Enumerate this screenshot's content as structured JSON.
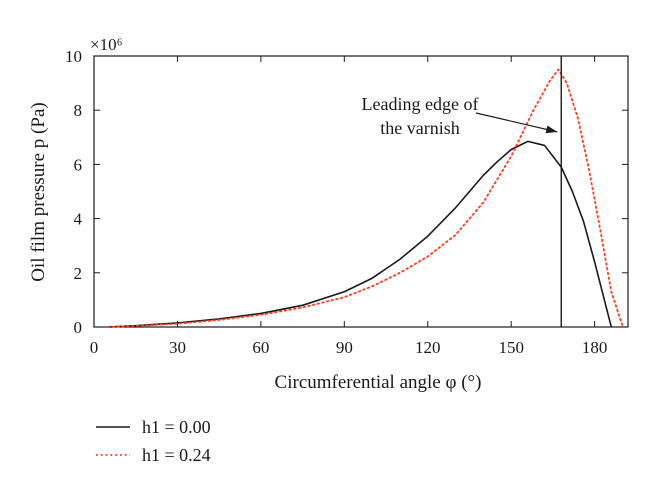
{
  "chart_data": {
    "type": "line",
    "xlabel": "Circumferential angle φ (°)",
    "ylabel": "Oil film pressure p (Pa)",
    "y_multiplier_label": "×10⁶",
    "xlim": [
      0,
      192
    ],
    "ylim": [
      0,
      10
    ],
    "x_ticks": [
      0,
      30,
      60,
      90,
      120,
      150,
      180
    ],
    "y_ticks": [
      0,
      2,
      4,
      6,
      8,
      10
    ],
    "grid": false,
    "legend_position": "bottom-left-outside",
    "series": [
      {
        "name": "h1 = 0.00",
        "color": "#1a1a1a",
        "style": "solid",
        "x": [
          5,
          15,
          30,
          45,
          60,
          75,
          90,
          100,
          110,
          120,
          130,
          140,
          145,
          150,
          156,
          162,
          168,
          172,
          176,
          180,
          183,
          186
        ],
        "y": [
          0.0,
          0.05,
          0.15,
          0.3,
          0.5,
          0.8,
          1.3,
          1.8,
          2.5,
          3.35,
          4.4,
          5.6,
          6.1,
          6.55,
          6.85,
          6.7,
          5.9,
          5.0,
          3.9,
          2.4,
          1.2,
          0.0
        ]
      },
      {
        "name": "h1 = 0.24",
        "color": "#ff3b1f",
        "style": "dotted",
        "x": [
          5,
          15,
          30,
          45,
          60,
          75,
          90,
          100,
          110,
          120,
          130,
          140,
          150,
          158,
          164,
          167,
          170,
          174,
          178,
          182,
          186,
          190
        ],
        "y": [
          0.0,
          0.04,
          0.12,
          0.26,
          0.45,
          0.72,
          1.1,
          1.5,
          2.0,
          2.6,
          3.4,
          4.6,
          6.3,
          8.0,
          9.1,
          9.5,
          9.0,
          7.7,
          5.8,
          3.6,
          1.3,
          0.05
        ]
      }
    ],
    "annotations": [
      {
        "text_line1": "Leading edge of",
        "text_line2": "the varnish",
        "vertical_line_x": 168,
        "arrow_target_x": 168,
        "arrow_target_y": 7.2
      }
    ]
  }
}
